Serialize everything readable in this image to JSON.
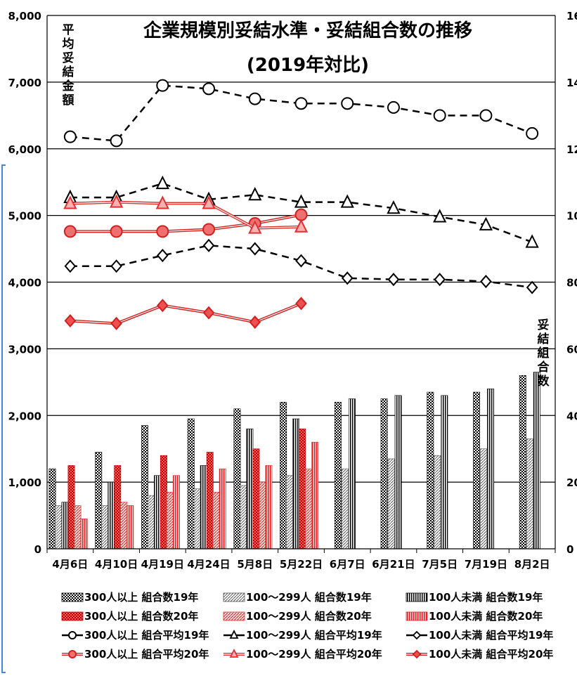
{
  "chart_data": {
    "type": "bar",
    "title_line1": "企業規模別妥結水準・妥結組合数の推移",
    "title_line2": "(2019年対比)",
    "ylabel_left": "平均妥結金額",
    "ylabel_right": "妥結組合数",
    "categories": [
      "4月6日",
      "4月10日",
      "4月19日",
      "4月24日",
      "5月8日",
      "5月22日",
      "6月7日",
      "6月21日",
      "7月5日",
      "7月19日",
      "8月2日"
    ],
    "ylim_left": [
      0,
      8000
    ],
    "ylim_right": [
      0,
      160
    ],
    "yticks_left": [
      "0",
      "1,000",
      "2,000",
      "3,000",
      "4,000",
      "5,000",
      "6,000",
      "7,000",
      "8,000"
    ],
    "yticks_right": [
      "0",
      "20",
      "40",
      "60",
      "80",
      "100",
      "120",
      "140",
      "160"
    ],
    "bar_series": [
      {
        "name": "300人以上 組合数19年",
        "axis": "right",
        "values": [
          24,
          29,
          37,
          39,
          42,
          44,
          44,
          45,
          47,
          47,
          52
        ]
      },
      {
        "name": "100～299人 組合数19年",
        "axis": "right",
        "values": [
          13,
          13,
          16,
          18,
          19,
          22,
          24,
          27,
          28,
          30,
          33
        ]
      },
      {
        "name": "100人未満 組合数19年",
        "axis": "right",
        "values": [
          14,
          20,
          22,
          25,
          36,
          39,
          45,
          46,
          46,
          48,
          53
        ]
      },
      {
        "name": "300人以上 組合数20年",
        "axis": "right",
        "values": [
          25,
          25,
          28,
          29,
          30,
          36,
          null,
          null,
          null,
          null,
          null
        ]
      },
      {
        "name": "100～299人 組合数20年",
        "axis": "right",
        "values": [
          13,
          14,
          17,
          17,
          20,
          24,
          null,
          null,
          null,
          null,
          null
        ]
      },
      {
        "name": "100人未満 組合数20年",
        "axis": "right",
        "values": [
          9,
          13,
          22,
          24,
          25,
          32,
          null,
          null,
          null,
          null,
          null
        ]
      }
    ],
    "line_series": [
      {
        "name": "300人以上 組合平均19年",
        "axis": "left",
        "values": [
          6180,
          6120,
          6950,
          6900,
          6750,
          6680,
          6680,
          6620,
          6500,
          6500,
          6230
        ]
      },
      {
        "name": "100～299人 組合平均19年",
        "axis": "left",
        "values": [
          5270,
          5270,
          5480,
          5240,
          5310,
          5200,
          5200,
          5110,
          4980,
          4860,
          4600
        ]
      },
      {
        "name": "100人未満 組合平均19年",
        "axis": "left",
        "values": [
          4240,
          4240,
          4400,
          4550,
          4500,
          4320,
          4060,
          4040,
          4040,
          4010,
          3920
        ]
      },
      {
        "name": "300人以上 組合平均20年",
        "axis": "left",
        "values": [
          4760,
          4760,
          4760,
          4790,
          4880,
          5010,
          null,
          null,
          null,
          null,
          null
        ]
      },
      {
        "name": "100～299人 組合平均20年",
        "axis": "left",
        "values": [
          5180,
          5200,
          5180,
          5180,
          4810,
          4830,
          null,
          null,
          null,
          null,
          null
        ]
      },
      {
        "name": "100人未満 組合平均20年",
        "axis": "left",
        "values": [
          3420,
          3380,
          3650,
          3540,
          3400,
          3680,
          null,
          null,
          null,
          null,
          null
        ]
      }
    ],
    "grid": true,
    "legend_position": "bottom"
  },
  "colors": {
    "series19": "#000000",
    "series20": "#e02020",
    "gridline": "#000000"
  }
}
